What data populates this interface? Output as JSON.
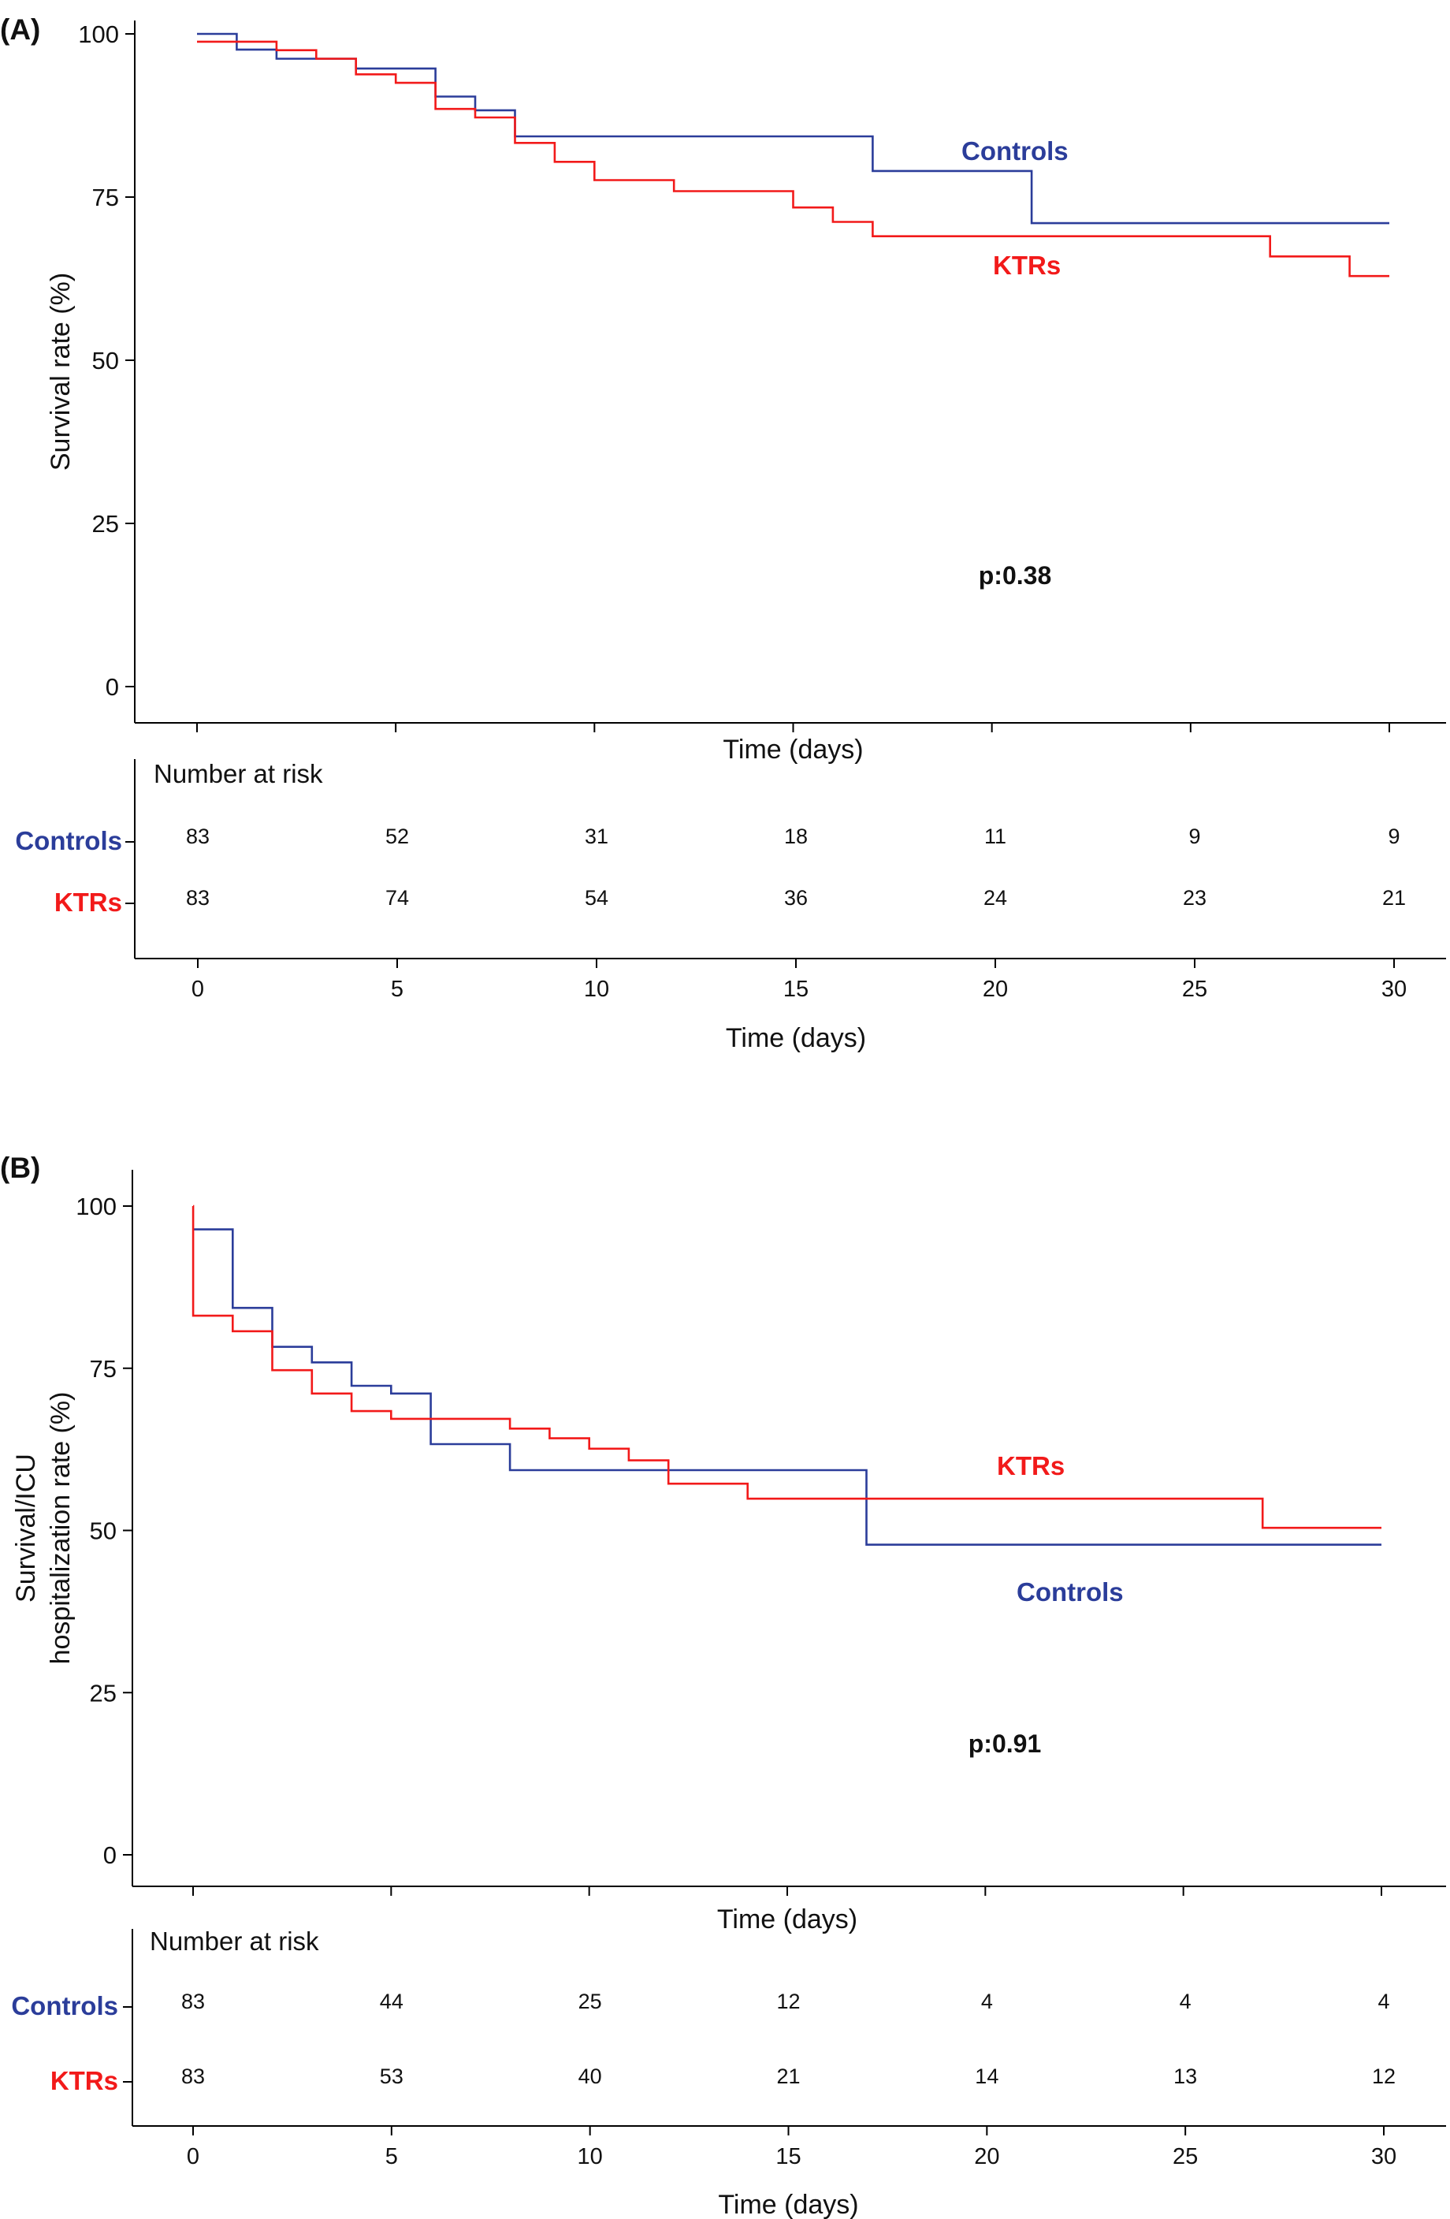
{
  "colors": {
    "controls": "#2b3d9a",
    "ktrs": "#f21a1a",
    "axis": "#000000",
    "text": "#111111"
  },
  "chart_data": [
    {
      "panel_label": "(A)",
      "type": "line",
      "step": "post",
      "ylabel_lines": [
        "Survival rate (%)"
      ],
      "xlabel": "Time (days)",
      "xlim": [
        0,
        30
      ],
      "ylim": [
        0,
        100
      ],
      "yticks": [
        0,
        25,
        50,
        75,
        100
      ],
      "xticks": [
        0,
        5,
        10,
        15,
        20,
        25,
        30
      ],
      "grid": false,
      "p_value_label": "p:0.38",
      "series": [
        {
          "name": "Controls",
          "color": "#2b3d9a",
          "x": [
            0,
            1,
            2,
            4,
            6,
            7,
            8,
            17,
            21,
            30
          ],
          "y": [
            100,
            97.6,
            96.2,
            94.7,
            90.4,
            88.3,
            84.3,
            79,
            71,
            71
          ]
        },
        {
          "name": "KTRs",
          "color": "#f21a1a",
          "x": [
            0,
            1,
            2,
            3,
            4,
            5,
            6,
            7,
            8,
            9,
            10,
            12,
            15,
            16,
            17,
            27,
            29,
            30
          ],
          "y": [
            98.8,
            98.8,
            97.5,
            96.2,
            93.8,
            92.5,
            88.5,
            87.2,
            83.3,
            80.4,
            77.6,
            75.9,
            73.4,
            71.2,
            69,
            65.9,
            62.9,
            62.9
          ]
        }
      ],
      "risk_table": {
        "title": "Number at risk",
        "xlabel": "Time (days)",
        "xticks": [
          0,
          5,
          10,
          15,
          20,
          25,
          30
        ],
        "rows": [
          {
            "group": "Controls",
            "values": [
              "83",
              "52",
              "31",
              "18",
              "11",
              "9",
              "9"
            ]
          },
          {
            "group": "KTRs",
            "values": [
              "83",
              "74",
              "54",
              "36",
              "24",
              "23",
              "21"
            ]
          }
        ]
      }
    },
    {
      "panel_label": "(B)",
      "type": "line",
      "step": "post",
      "ylabel_lines": [
        "Survival/ICU",
        "hospitalization rate (%)"
      ],
      "xlabel": "Time (days)",
      "xlim": [
        0,
        30
      ],
      "ylim": [
        0,
        100
      ],
      "yticks": [
        0,
        25,
        50,
        75,
        100
      ],
      "xticks": [
        0,
        5,
        10,
        15,
        20,
        25,
        30
      ],
      "grid": false,
      "p_value_label": "p:0.91",
      "series": [
        {
          "name": "Controls",
          "color": "#2b3d9a",
          "x": [
            0,
            1,
            2,
            3,
            4,
            5,
            6,
            8,
            17,
            30
          ],
          "y": [
            96.4,
            84.3,
            78.3,
            75.9,
            72.3,
            71.1,
            63.3,
            59.3,
            47.8,
            47.8
          ]
        },
        {
          "name": "KTRs",
          "color": "#f21a1a",
          "x": [
            0,
            0.001,
            1,
            2,
            3,
            4,
            5,
            8,
            9,
            10,
            11,
            12,
            14,
            27,
            30
          ],
          "y": [
            100,
            83.1,
            80.7,
            74.7,
            71.1,
            68.4,
            67.2,
            65.7,
            64.2,
            62.6,
            60.8,
            57.2,
            54.9,
            50.4,
            50.4
          ]
        }
      ],
      "risk_table": {
        "title": "Number at risk",
        "xlabel": "Time (days)",
        "xticks": [
          0,
          5,
          10,
          15,
          20,
          25,
          30
        ],
        "rows": [
          {
            "group": "Controls",
            "values": [
              "83",
              "44",
              "25",
              "12",
              "4",
              "4",
              "4"
            ]
          },
          {
            "group": "KTRs",
            "values": [
              "83",
              "53",
              "40",
              "21",
              "14",
              "13",
              "12"
            ]
          }
        ]
      }
    }
  ]
}
